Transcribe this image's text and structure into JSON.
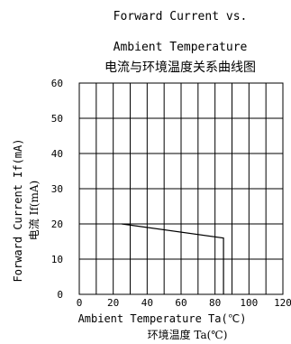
{
  "chart_data": {
    "type": "line",
    "title_en_line1": "Forward Current vs.",
    "title_en_line2": "Ambient Temperature",
    "title_cn": "电流与环境温度关系曲线图",
    "ylabel_en": "Forward Current If(mA)",
    "ylabel_cn": "电流 If(mA)",
    "xlabel_en": "Ambient Temperature Ta(℃)",
    "xlabel_cn": "环境温度 Ta(℃)",
    "xlim": [
      0,
      120
    ],
    "ylim": [
      0,
      60
    ],
    "x_ticks": [
      "0",
      "20",
      "40",
      "60",
      "80",
      "100",
      "120"
    ],
    "y_ticks": [
      "0",
      "10",
      "20",
      "30",
      "40",
      "50",
      "60"
    ],
    "grid": true,
    "grid_x_step": 10,
    "grid_y_step": 10,
    "series": [
      {
        "color": "#000000",
        "x": [
          25,
          85,
          85
        ],
        "y": [
          20,
          16,
          0
        ]
      }
    ]
  }
}
